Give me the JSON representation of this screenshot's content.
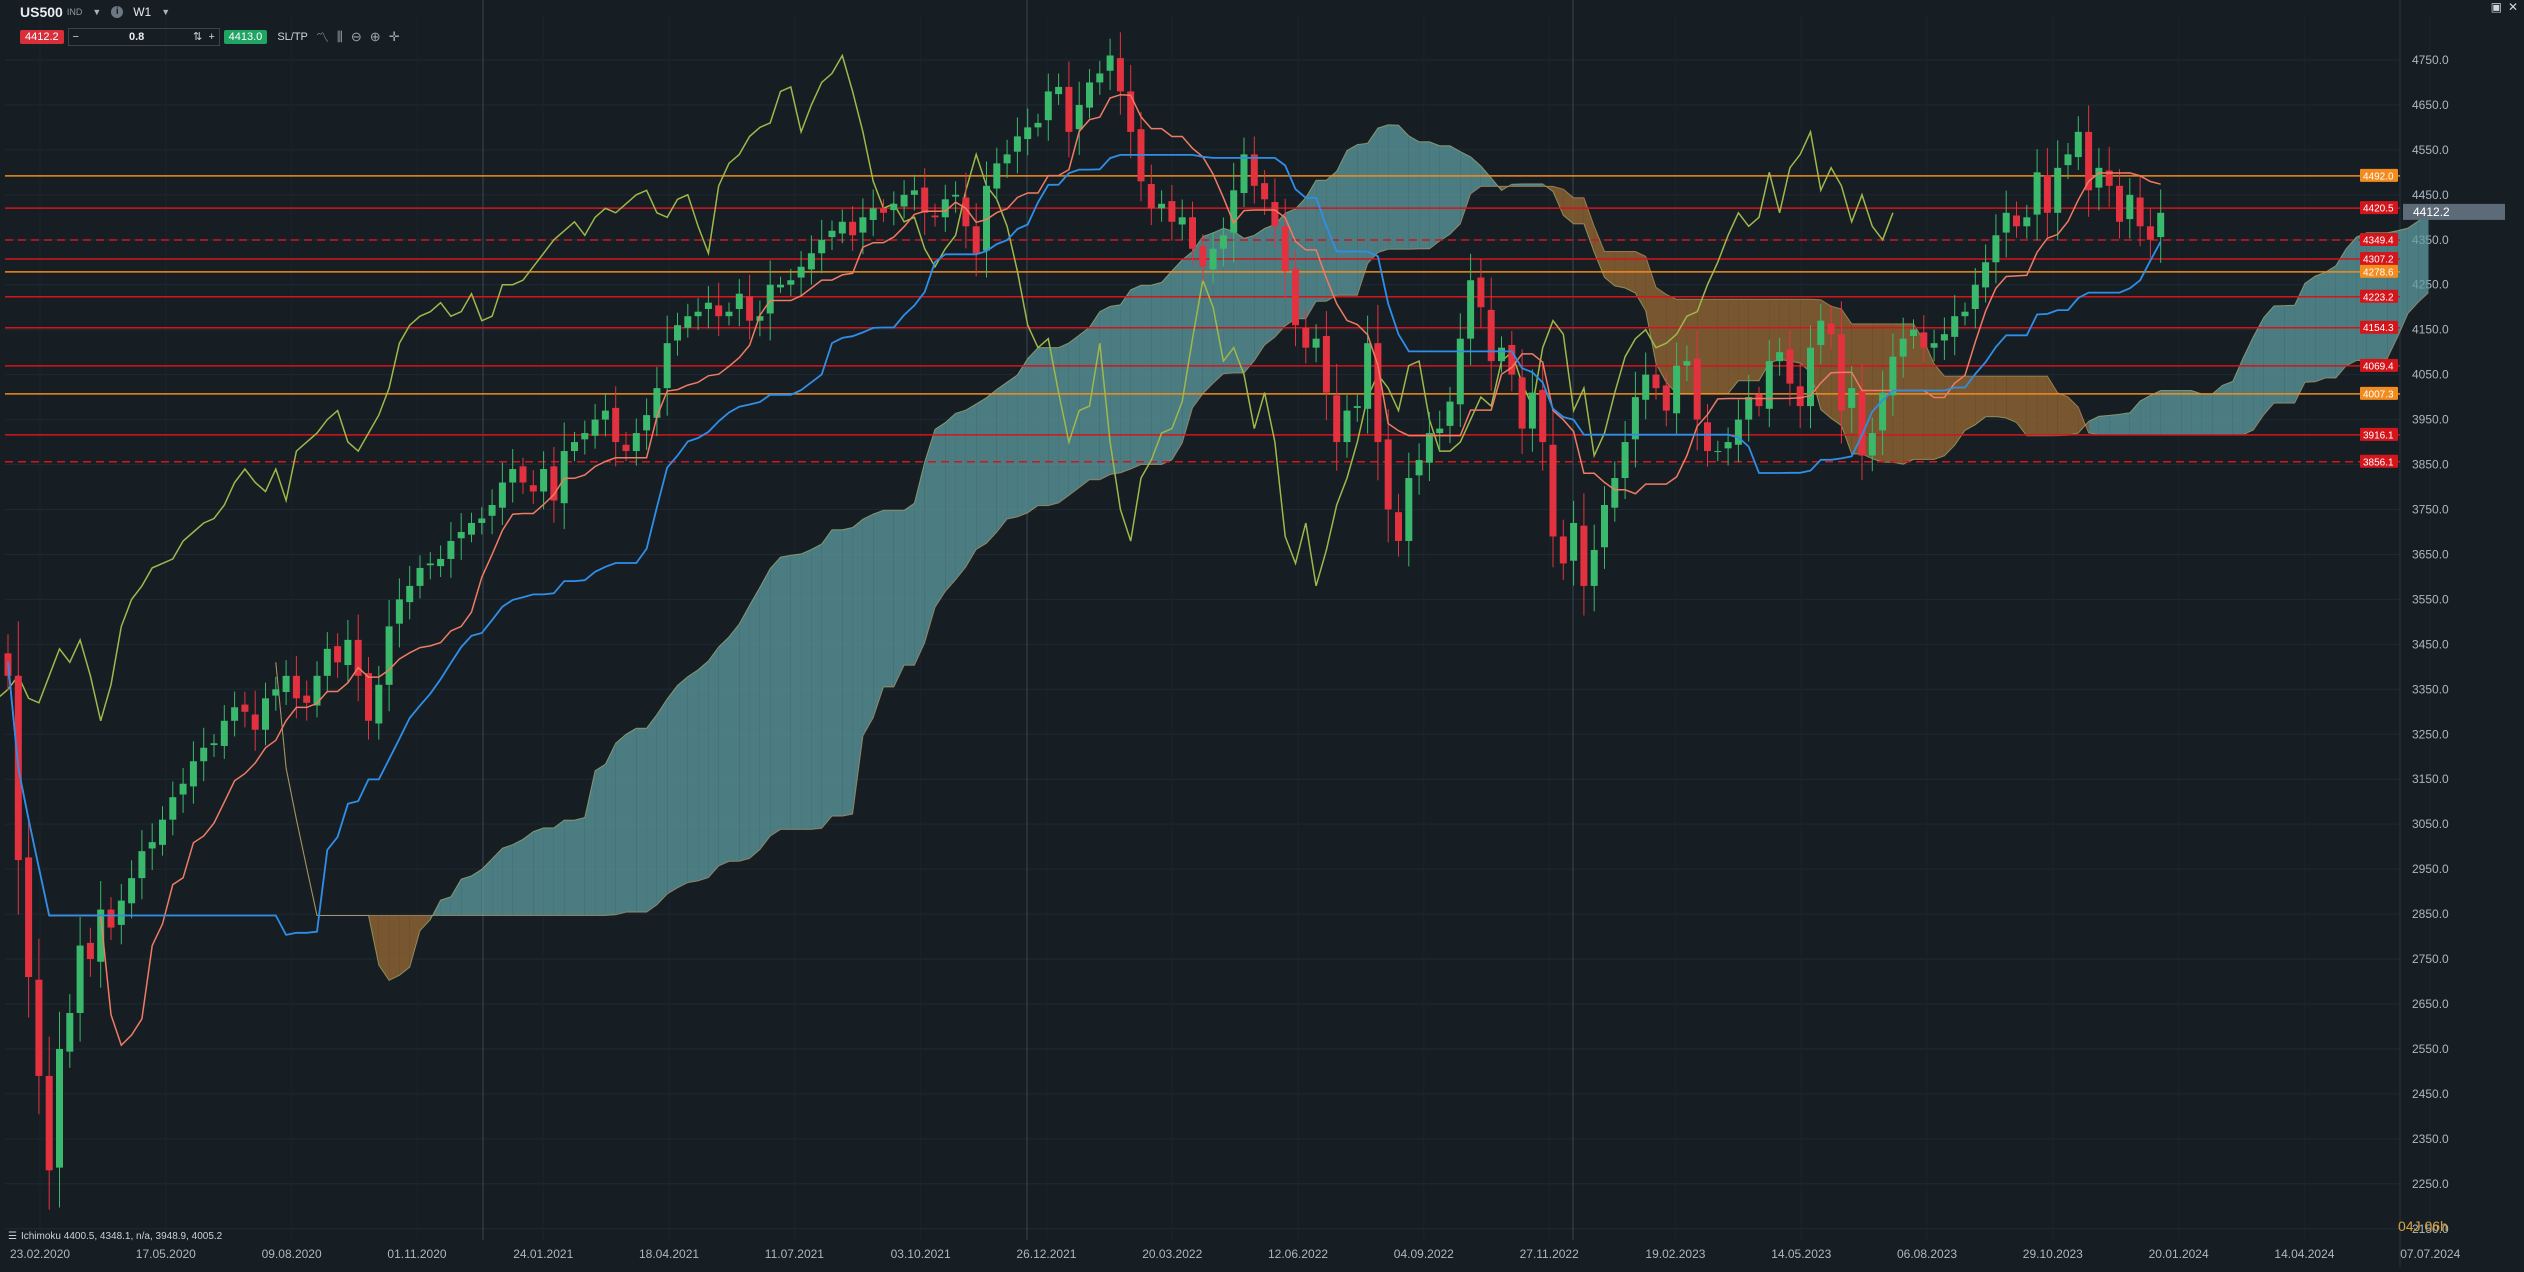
{
  "header": {
    "symbol": "US500",
    "symbol_sub": "IND",
    "timeframe": "W1",
    "sell_price": "4412.2",
    "buy_price": "4413.0",
    "quantity": "0.8",
    "sltp_label": "SL/TP",
    "minus": "−",
    "plus": "+"
  },
  "indicator_legend": "Ichimoku 4400.5, 4348.1, n/a, 3948.9, 4005.2",
  "countdown": "04J 06h",
  "window_controls": [
    "▣",
    "✕"
  ],
  "chart_data": {
    "type": "candlestick",
    "title": "",
    "xlabel": "",
    "ylabel": "",
    "ylim": [
      2125,
      4850
    ],
    "y_ticks": [
      "4750.0",
      "4650.0",
      "4550.0",
      "4450.0",
      "4350.0",
      "4250.0",
      "4150.0",
      "4050.0",
      "3950.0",
      "3850.0",
      "3750.0",
      "3650.0",
      "3550.0",
      "3450.0",
      "3350.0",
      "3250.0",
      "3150.0",
      "3050.0",
      "2950.0",
      "2850.0",
      "2750.0",
      "2650.0",
      "2550.0",
      "2450.0",
      "2350.0",
      "2250.0",
      "2150.0"
    ],
    "x_ticks": [
      "23.02.2020",
      "17.05.2020",
      "09.08.2020",
      "01.11.2020",
      "24.01.2021",
      "18.04.2021",
      "11.07.2021",
      "03.10.2021",
      "26.12.2021",
      "20.03.2022",
      "12.06.2022",
      "04.09.2022",
      "27.11.2022",
      "19.02.2023",
      "14.05.2023",
      "06.08.2023",
      "29.10.2023",
      "20.01.2024",
      "14.04.2024",
      "07.07.2024"
    ],
    "current_price": "4412.2",
    "closes": [
      3380,
      2970,
      2710,
      2490,
      2280,
      2550,
      2630,
      2780,
      2750,
      2860,
      2820,
      2880,
      2930,
      2990,
      3010,
      3060,
      3110,
      3140,
      3190,
      3220,
      3230,
      3280,
      3310,
      3300,
      3260,
      3330,
      3350,
      3380,
      3330,
      3320,
      3380,
      3440,
      3410,
      3460,
      3380,
      3280,
      3360,
      3490,
      3550,
      3580,
      3620,
      3630,
      3640,
      3680,
      3700,
      3720,
      3730,
      3760,
      3810,
      3840,
      3810,
      3790,
      3840,
      3770,
      3880,
      3900,
      3920,
      3950,
      3970,
      3900,
      3880,
      3920,
      3960,
      4020,
      4120,
      4160,
      4180,
      4190,
      4210,
      4180,
      4190,
      4230,
      4170,
      4180,
      4250,
      4250,
      4260,
      4290,
      4320,
      4350,
      4370,
      4390,
      4360,
      4400,
      4420,
      4410,
      4430,
      4450,
      4460,
      4410,
      4400,
      4440,
      4450,
      4380,
      4320,
      4470,
      4520,
      4540,
      4580,
      4600,
      4610,
      4680,
      4690,
      4590,
      4650,
      4700,
      4720,
      4760,
      4680,
      4590,
      4480,
      4420,
      4430,
      4390,
      4400,
      4330,
      4290,
      4330,
      4360,
      4460,
      4540,
      4470,
      4440,
      4380,
      4280,
      4160,
      4110,
      4130,
      4010,
      3900,
      3970,
      3980,
      4120,
      3900,
      3750,
      3680,
      3820,
      3860,
      3920,
      3930,
      3990,
      4130,
      4260,
      4200,
      4080,
      4110,
      4050,
      3930,
      4010,
      3900,
      3690,
      3630,
      3720,
      3580,
      3660,
      3760,
      3820,
      3900,
      4000,
      4050,
      4020,
      3970,
      4070,
      4080,
      3950,
      3880,
      3880,
      3900,
      3950,
      4000,
      3980,
      4080,
      4100,
      4030,
      3980,
      4110,
      4170,
      4140,
      3970,
      4020,
      3870,
      3920,
      4010,
      4090,
      4130,
      4150,
      4110,
      4120,
      4140,
      4180,
      4190,
      4250,
      4300,
      4360,
      4410,
      4380,
      4400,
      4500,
      4410,
      4510,
      4540,
      4590,
      4460,
      4510,
      4470,
      4390,
      4450,
      4380,
      4350,
      4410
    ],
    "levels": [
      {
        "value": 4492.0,
        "label": "4492.0",
        "color": "#f28c1e",
        "style": "solid"
      },
      {
        "value": 4420.5,
        "label": "4420.5",
        "color": "#d3151c",
        "style": "solid"
      },
      {
        "value": 4349.4,
        "label": "4349.4",
        "color": "#d3151c",
        "style": "dashed"
      },
      {
        "value": 4307.2,
        "label": "4307.2",
        "color": "#d3151c",
        "style": "solid"
      },
      {
        "value": 4278.6,
        "label": "4278.6",
        "color": "#f28c1e",
        "style": "solid"
      },
      {
        "value": 4223.2,
        "label": "4223.2",
        "color": "#d3151c",
        "style": "solid"
      },
      {
        "value": 4154.3,
        "label": "4154.3",
        "color": "#d3151c",
        "style": "solid"
      },
      {
        "value": 4069.4,
        "label": "4069.4",
        "color": "#d3151c",
        "style": "solid"
      },
      {
        "value": 4007.3,
        "label": "4007.3",
        "color": "#f28c1e",
        "style": "solid"
      },
      {
        "value": 3916.1,
        "label": "3916.1",
        "color": "#d3151c",
        "style": "solid"
      },
      {
        "value": 3856.1,
        "label": "3856.1",
        "color": "#d3151c",
        "style": "dashed"
      }
    ],
    "colors": {
      "background": "#161e24",
      "bull": "#3ab86c",
      "bear": "#e2323f",
      "tenkan": "#f07b63",
      "kijun": "#2f8ee8",
      "chikou": "#9fb84a",
      "cloud_bull": "#5d9ca0",
      "cloud_bear": "#9a6a33"
    },
    "grid": true,
    "legend": "bottom-left"
  }
}
